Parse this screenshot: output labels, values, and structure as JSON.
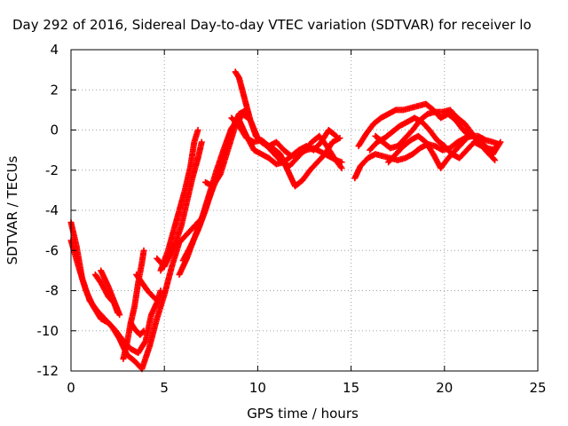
{
  "chart_data": {
    "type": "scatter",
    "title": "Day 292 of 2016, Sidereal Day-to-day VTEC variation (SDTVAR) for receiver lo",
    "xlabel": "GPS time / hours",
    "ylabel": "SDTVAR / TECUs",
    "xlim": [
      0,
      25
    ],
    "ylim": [
      -12,
      4
    ],
    "xticks": [
      0,
      5,
      10,
      15,
      20,
      25
    ],
    "yticks": [
      -12,
      -10,
      -8,
      -6,
      -4,
      -2,
      0,
      2,
      4
    ],
    "grid": true,
    "marker": "plus",
    "series": [
      {
        "color": "#ff0000",
        "tracks": [
          [
            [
              0.0,
              -4.6
            ],
            [
              0.3,
              -5.8
            ],
            [
              0.6,
              -7.4
            ],
            [
              1.0,
              -8.5
            ],
            [
              1.4,
              -9.0
            ],
            [
              1.8,
              -9.4
            ],
            [
              2.2,
              -9.8
            ],
            [
              2.6,
              -10.4
            ],
            [
              3.0,
              -11.2
            ],
            [
              3.4,
              -11.5
            ],
            [
              3.8,
              -11.9
            ],
            [
              4.2,
              -10.8
            ],
            [
              4.6,
              -9.4
            ],
            [
              5.0,
              -8.2
            ],
            [
              5.4,
              -6.8
            ],
            [
              5.8,
              -5.6
            ],
            [
              6.2,
              -5.2
            ],
            [
              6.6,
              -4.8
            ],
            [
              7.0,
              -4.4
            ],
            [
              7.4,
              -3.2
            ],
            [
              7.8,
              -2.0
            ],
            [
              8.2,
              -0.9
            ],
            [
              8.6,
              0.1
            ],
            [
              9.0,
              0.5
            ],
            [
              9.4,
              -0.3
            ],
            [
              9.8,
              -1.0
            ],
            [
              10.2,
              -1.2
            ],
            [
              10.6,
              -1.4
            ],
            [
              11.0,
              -1.7
            ],
            [
              11.4,
              -1.6
            ],
            [
              11.8,
              -1.3
            ],
            [
              12.2,
              -1.2
            ],
            [
              12.6,
              -1.0
            ],
            [
              13.0,
              -0.9
            ],
            [
              13.4,
              -1.1
            ],
            [
              13.8,
              -1.3
            ],
            [
              14.2,
              -1.5
            ],
            [
              14.5,
              -1.6
            ]
          ],
          [
            [
              0.0,
              -5.5
            ],
            [
              0.4,
              -6.8
            ],
            [
              0.8,
              -8.0
            ],
            [
              1.2,
              -8.8
            ],
            [
              1.6,
              -9.4
            ],
            [
              2.0,
              -9.6
            ],
            [
              2.4,
              -10.0
            ],
            [
              2.8,
              -10.5
            ],
            [
              3.2,
              -10.9
            ],
            [
              3.6,
              -11.1
            ],
            [
              4.0,
              -10.5
            ],
            [
              4.3,
              -9.2
            ],
            [
              4.6,
              -8.6
            ],
            [
              4.8,
              -8.0
            ]
          ],
          [
            [
              1.3,
              -7.2
            ],
            [
              1.6,
              -7.6
            ],
            [
              2.0,
              -8.3
            ],
            [
              2.3,
              -8.6
            ],
            [
              2.5,
              -9.1
            ]
          ],
          [
            [
              1.6,
              -7.0
            ],
            [
              2.0,
              -7.8
            ],
            [
              2.3,
              -8.5
            ],
            [
              2.6,
              -9.2
            ]
          ],
          [
            [
              2.8,
              -11.4
            ],
            [
              3.0,
              -10.6
            ],
            [
              3.2,
              -9.6
            ],
            [
              3.4,
              -8.8
            ],
            [
              3.6,
              -7.6
            ],
            [
              3.8,
              -6.6
            ],
            [
              3.9,
              -6.0
            ]
          ],
          [
            [
              3.2,
              -9.6
            ],
            [
              3.4,
              -9.9
            ],
            [
              3.7,
              -10.2
            ],
            [
              3.9,
              -10.0
            ]
          ],
          [
            [
              3.5,
              -7.2
            ],
            [
              3.8,
              -7.6
            ],
            [
              4.1,
              -8.0
            ],
            [
              4.5,
              -8.4
            ]
          ],
          [
            [
              4.6,
              -6.4
            ],
            [
              5.0,
              -6.8
            ],
            [
              5.3,
              -6.2
            ],
            [
              5.6,
              -5.6
            ],
            [
              5.9,
              -4.8
            ],
            [
              6.2,
              -3.6
            ],
            [
              6.5,
              -2.4
            ],
            [
              6.8,
              -1.4
            ],
            [
              7.0,
              -0.6
            ]
          ],
          [
            [
              4.8,
              -7.0
            ],
            [
              5.2,
              -6.0
            ],
            [
              5.5,
              -5.0
            ],
            [
              5.8,
              -4.0
            ],
            [
              6.1,
              -3.0
            ],
            [
              6.4,
              -1.8
            ],
            [
              6.6,
              -0.6
            ],
            [
              6.8,
              0.0
            ]
          ],
          [
            [
              5.8,
              -7.2
            ],
            [
              6.2,
              -6.4
            ],
            [
              6.6,
              -5.4
            ],
            [
              7.0,
              -4.4
            ],
            [
              7.4,
              -3.4
            ],
            [
              7.8,
              -2.4
            ],
            [
              8.2,
              -1.2
            ],
            [
              8.6,
              0.0
            ],
            [
              9.0,
              0.8
            ],
            [
              9.4,
              1.0
            ]
          ],
          [
            [
              6.0,
              -6.5
            ],
            [
              6.4,
              -5.8
            ],
            [
              6.8,
              -5.0
            ],
            [
              7.2,
              -4.0
            ],
            [
              7.6,
              -2.8
            ],
            [
              8.0,
              -1.8
            ]
          ],
          [
            [
              7.2,
              -2.6
            ],
            [
              7.6,
              -2.8
            ],
            [
              8.0,
              -2.2
            ],
            [
              8.4,
              -1.0
            ],
            [
              8.8,
              0.2
            ],
            [
              9.2,
              0.8
            ],
            [
              9.6,
              0.5
            ],
            [
              10.0,
              -0.4
            ],
            [
              10.4,
              -0.7
            ],
            [
              10.8,
              -0.9
            ],
            [
              11.2,
              -1.2
            ],
            [
              11.6,
              -2.0
            ],
            [
              12.0,
              -2.8
            ],
            [
              12.4,
              -2.5
            ],
            [
              12.8,
              -2.0
            ],
            [
              13.2,
              -1.6
            ],
            [
              13.6,
              -1.2
            ],
            [
              14.0,
              -0.6
            ],
            [
              14.4,
              -0.4
            ]
          ],
          [
            [
              8.8,
              2.9
            ],
            [
              9.0,
              2.6
            ],
            [
              9.2,
              1.9
            ],
            [
              9.4,
              1.2
            ],
            [
              9.6,
              0.5
            ],
            [
              9.9,
              -0.3
            ],
            [
              10.2,
              -0.6
            ],
            [
              10.5,
              -0.8
            ],
            [
              10.9,
              -1.2
            ],
            [
              11.3,
              -1.6
            ],
            [
              11.7,
              -1.8
            ],
            [
              12.1,
              -1.4
            ],
            [
              12.5,
              -1.0
            ],
            [
              12.9,
              -0.6
            ],
            [
              13.3,
              -0.3
            ],
            [
              13.7,
              -0.8
            ],
            [
              14.1,
              -1.4
            ],
            [
              14.5,
              -1.9
            ]
          ],
          [
            [
              8.6,
              0.6
            ],
            [
              9.0,
              0.2
            ],
            [
              9.4,
              -0.4
            ],
            [
              9.8,
              -0.6
            ],
            [
              10.2,
              -0.5
            ],
            [
              10.6,
              -0.8
            ],
            [
              11.0,
              -0.6
            ],
            [
              11.4,
              -1.0
            ],
            [
              11.8,
              -1.3
            ],
            [
              12.2,
              -1.0
            ],
            [
              12.6,
              -0.8
            ],
            [
              13.0,
              -1.0
            ],
            [
              13.4,
              -0.6
            ],
            [
              13.8,
              0.0
            ],
            [
              14.2,
              -0.3
            ]
          ],
          [
            [
              15.2,
              -2.4
            ],
            [
              15.5,
              -1.8
            ],
            [
              15.9,
              -1.4
            ],
            [
              16.3,
              -1.2
            ],
            [
              16.7,
              -1.3
            ],
            [
              17.1,
              -1.4
            ],
            [
              17.5,
              -1.5
            ],
            [
              17.9,
              -1.4
            ],
            [
              18.3,
              -1.2
            ],
            [
              18.7,
              -0.9
            ],
            [
              19.1,
              -0.7
            ],
            [
              19.5,
              -0.8
            ],
            [
              19.9,
              -1.0
            ],
            [
              20.3,
              -0.9
            ],
            [
              20.7,
              -0.6
            ],
            [
              21.1,
              -0.4
            ],
            [
              21.5,
              -0.3
            ],
            [
              21.9,
              -0.6
            ],
            [
              22.3,
              -1.1
            ],
            [
              22.7,
              -1.5
            ]
          ],
          [
            [
              15.4,
              -0.8
            ],
            [
              15.8,
              -0.2
            ],
            [
              16.2,
              0.3
            ],
            [
              16.6,
              0.6
            ],
            [
              17.0,
              0.8
            ],
            [
              17.4,
              1.0
            ],
            [
              17.8,
              1.0
            ],
            [
              18.2,
              1.1
            ],
            [
              18.6,
              1.2
            ],
            [
              19.0,
              1.3
            ],
            [
              19.4,
              1.0
            ],
            [
              19.8,
              0.6
            ],
            [
              20.2,
              0.8
            ],
            [
              20.6,
              0.5
            ],
            [
              21.0,
              0.0
            ],
            [
              21.4,
              -0.3
            ],
            [
              21.8,
              -0.3
            ],
            [
              22.2,
              -0.5
            ],
            [
              22.6,
              -0.6
            ],
            [
              22.9,
              -0.7
            ]
          ],
          [
            [
              16.3,
              -0.3
            ],
            [
              16.7,
              -0.6
            ],
            [
              17.1,
              -0.9
            ],
            [
              17.5,
              -0.8
            ],
            [
              17.9,
              -0.4
            ],
            [
              18.3,
              0.0
            ],
            [
              18.7,
              0.5
            ],
            [
              19.1,
              0.8
            ],
            [
              19.5,
              0.9
            ],
            [
              19.9,
              0.9
            ],
            [
              20.3,
              1.0
            ],
            [
              20.7,
              0.6
            ],
            [
              21.1,
              0.3
            ],
            [
              21.5,
              -0.2
            ],
            [
              21.9,
              -0.6
            ],
            [
              22.3,
              -0.9
            ],
            [
              22.7,
              -1.0
            ]
          ],
          [
            [
              16.0,
              -1.0
            ],
            [
              16.4,
              -0.6
            ],
            [
              16.8,
              -0.4
            ],
            [
              17.2,
              -0.1
            ],
            [
              17.6,
              0.2
            ],
            [
              18.0,
              0.4
            ],
            [
              18.4,
              0.6
            ],
            [
              18.8,
              0.4
            ],
            [
              19.2,
              0.0
            ],
            [
              19.6,
              -0.5
            ],
            [
              20.0,
              -0.8
            ],
            [
              20.4,
              -1.2
            ],
            [
              20.8,
              -1.4
            ],
            [
              21.2,
              -1.0
            ],
            [
              21.6,
              -0.6
            ],
            [
              22.0,
              -0.8
            ],
            [
              22.4,
              -1.2
            ],
            [
              22.8,
              -0.8
            ]
          ],
          [
            [
              17.0,
              -1.6
            ],
            [
              17.4,
              -1.2
            ],
            [
              17.8,
              -0.8
            ],
            [
              18.2,
              -0.5
            ],
            [
              18.6,
              -0.3
            ],
            [
              19.0,
              -0.6
            ],
            [
              19.4,
              -1.2
            ],
            [
              19.8,
              -1.9
            ],
            [
              20.2,
              -1.4
            ],
            [
              20.6,
              -1.0
            ],
            [
              21.0,
              -0.6
            ],
            [
              21.4,
              -0.2
            ],
            [
              21.8,
              -0.5
            ],
            [
              22.2,
              -0.9
            ],
            [
              22.6,
              -1.2
            ],
            [
              23.0,
              -0.6
            ]
          ]
        ]
      }
    ]
  }
}
